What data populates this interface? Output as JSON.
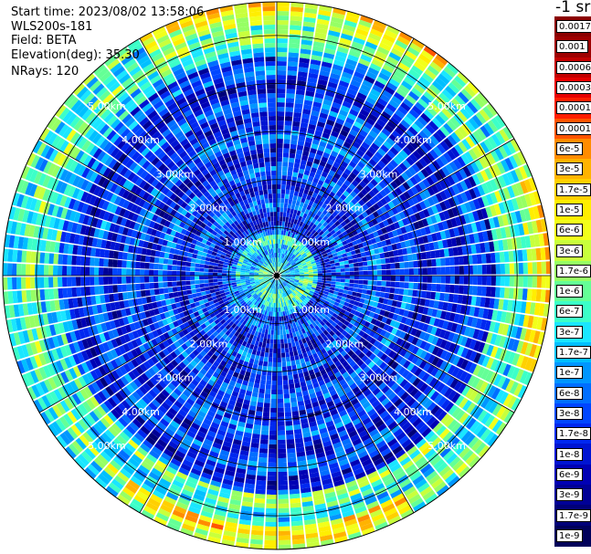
{
  "header": {
    "start_time": "Start time: 2023/08/02 13:58:06",
    "instrument": "WLS200s-181",
    "field": "Field: BETA",
    "elevation": "Elevation(deg): 35.30",
    "nrays": "NRays: 120"
  },
  "units_label": "-1 sr",
  "chart_data": {
    "type": "heatmap",
    "projection": "polar-ppi",
    "field": "BETA",
    "elevation_deg": 35.3,
    "nrays": 120,
    "range_ring_labels_km": [
      "1.00km",
      "2.00km",
      "3.00km",
      "4.00km",
      "5.00km"
    ],
    "range_rings_km": [
      1,
      2,
      3,
      4,
      5
    ],
    "max_range_km": 5.7,
    "azimuth_spokes_deg": [
      0,
      30,
      60,
      90,
      120,
      150,
      180,
      210,
      240,
      270,
      300,
      330
    ],
    "pattern_description_values": {
      "near_center": 3e-07,
      "mid_range": 2e-08,
      "outer_ring": 6e-07,
      "edge_peaks": 6e-06
    },
    "colorbar": {
      "scale": "log",
      "labels": [
        "0.0017",
        "0.001",
        "0.0006",
        "0.0003",
        "0.00017",
        "0.0001",
        "6e-5",
        "3e-5",
        "1.7e-5",
        "1e-5",
        "6e-6",
        "3e-6",
        "1.7e-6",
        "1e-6",
        "6e-7",
        "3e-7",
        "1.7e-7",
        "1e-7",
        "6e-8",
        "3e-8",
        "1.7e-8",
        "1e-8",
        "6e-9",
        "3e-9",
        "1.7e-9",
        "1e-9"
      ],
      "colors": [
        "#8b0000",
        "#9e0000",
        "#c20000",
        "#e60000",
        "#ff1e00",
        "#ff5500",
        "#ff8c00",
        "#ffb300",
        "#ffd000",
        "#ffee00",
        "#f2ff1a",
        "#c8ff3c",
        "#96ff64",
        "#64ff96",
        "#3cffc8",
        "#1ae6ff",
        "#00bfff",
        "#0096ff",
        "#006eff",
        "#0046ff",
        "#0028f0",
        "#0014d2",
        "#0000b4",
        "#000096",
        "#000078",
        "#00005a"
      ]
    }
  }
}
